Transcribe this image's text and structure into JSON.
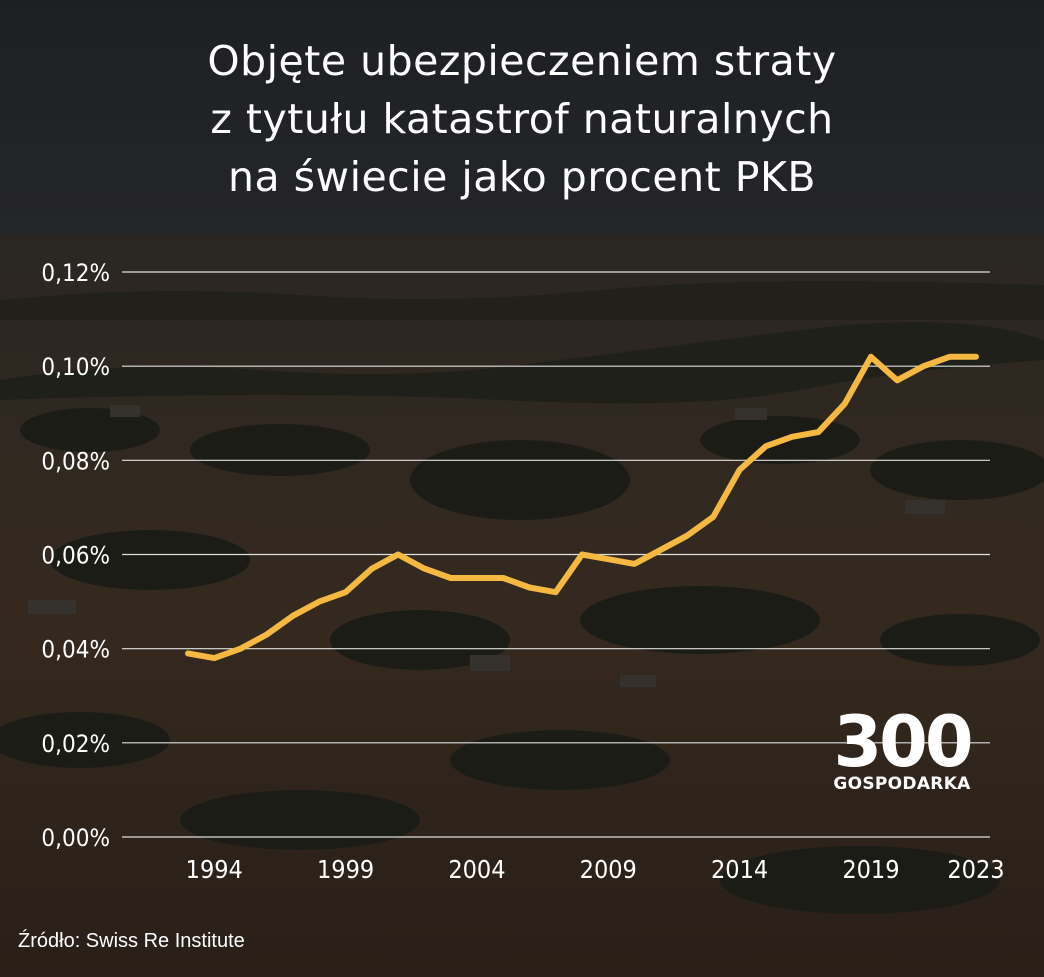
{
  "title_lines": [
    "Objęte ubezpieczeniem straty",
    "z tytułu katastrof naturalnych",
    "na świecie jako procent PKB"
  ],
  "logo": {
    "number": "300",
    "label": "GOSPODARKA"
  },
  "source": "Źródło: Swiss Re Institute",
  "colors": {
    "line": "#f5b942",
    "grid": "#ffffff",
    "text": "#ffffff"
  },
  "chart_data": {
    "type": "line",
    "title": "Objęte ubezpieczeniem straty z tytułu katastrof naturalnych na świecie jako procent PKB",
    "xlabel": "",
    "ylabel": "",
    "ylim": [
      0,
      0.12
    ],
    "yticks": [
      0.0,
      0.02,
      0.04,
      0.06,
      0.08,
      0.1,
      0.12
    ],
    "ytick_labels": [
      "0,00%",
      "0,02%",
      "0,04%",
      "0,06%",
      "0,08%",
      "0,10%",
      "0,12%"
    ],
    "xticks": [
      1994,
      1999,
      2004,
      2009,
      2014,
      2019,
      2023
    ],
    "xtick_labels": [
      "1994",
      "1999",
      "2004",
      "2009",
      "2014",
      "2019",
      "2023"
    ],
    "xlim": [
      1993,
      2023
    ],
    "grid": true,
    "legend": "none",
    "series": [
      {
        "x": [
          1993,
          1994,
          1995,
          1996,
          1997,
          1998,
          1999,
          2000,
          2001,
          2002,
          2003,
          2004,
          2005,
          2006,
          2007,
          2008,
          2009,
          2010,
          2011,
          2012,
          2013,
          2014,
          2015,
          2016,
          2017,
          2018,
          2019,
          2020,
          2021,
          2022,
          2023
        ],
        "values": [
          0.039,
          0.038,
          0.04,
          0.043,
          0.047,
          0.05,
          0.052,
          0.057,
          0.06,
          0.057,
          0.055,
          0.055,
          0.055,
          0.053,
          0.052,
          0.06,
          0.059,
          0.058,
          0.061,
          0.064,
          0.068,
          0.078,
          0.083,
          0.085,
          0.086,
          0.092,
          0.102,
          0.097,
          0.1,
          0.102,
          0.102
        ]
      }
    ]
  }
}
